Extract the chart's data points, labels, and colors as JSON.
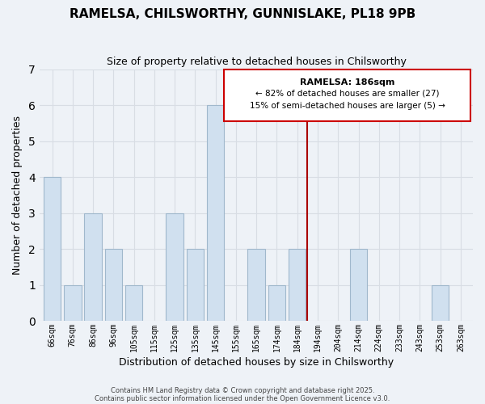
{
  "title": "RAMELSA, CHILSWORTHY, GUNNISLAKE, PL18 9PB",
  "subtitle": "Size of property relative to detached houses in Chilsworthy",
  "xlabel": "Distribution of detached houses by size in Chilsworthy",
  "ylabel": "Number of detached properties",
  "bin_labels": [
    "66sqm",
    "76sqm",
    "86sqm",
    "96sqm",
    "105sqm",
    "115sqm",
    "125sqm",
    "135sqm",
    "145sqm",
    "155sqm",
    "165sqm",
    "174sqm",
    "184sqm",
    "194sqm",
    "204sqm",
    "214sqm",
    "224sqm",
    "233sqm",
    "243sqm",
    "253sqm",
    "263sqm"
  ],
  "bar_heights": [
    4,
    1,
    3,
    2,
    1,
    0,
    3,
    2,
    6,
    0,
    2,
    1,
    2,
    0,
    0,
    2,
    0,
    0,
    0,
    1,
    0
  ],
  "bar_color": "#d0e0ef",
  "bar_edge_color": "#a0b8cc",
  "ylim": [
    0,
    7
  ],
  "yticks": [
    0,
    1,
    2,
    3,
    4,
    5,
    6,
    7
  ],
  "vline_color": "#aa0000",
  "annotation_title": "RAMELSA: 186sqm",
  "annotation_line1": "← 82% of detached houses are smaller (27)",
  "annotation_line2": "15% of semi-detached houses are larger (5) →",
  "footer_line1": "Contains HM Land Registry data © Crown copyright and database right 2025.",
  "footer_line2": "Contains public sector information licensed under the Open Government Licence v3.0.",
  "bg_color": "#eef2f7",
  "grid_color": "#d8dde4",
  "n_bins": 21,
  "vline_bin_index": 12
}
